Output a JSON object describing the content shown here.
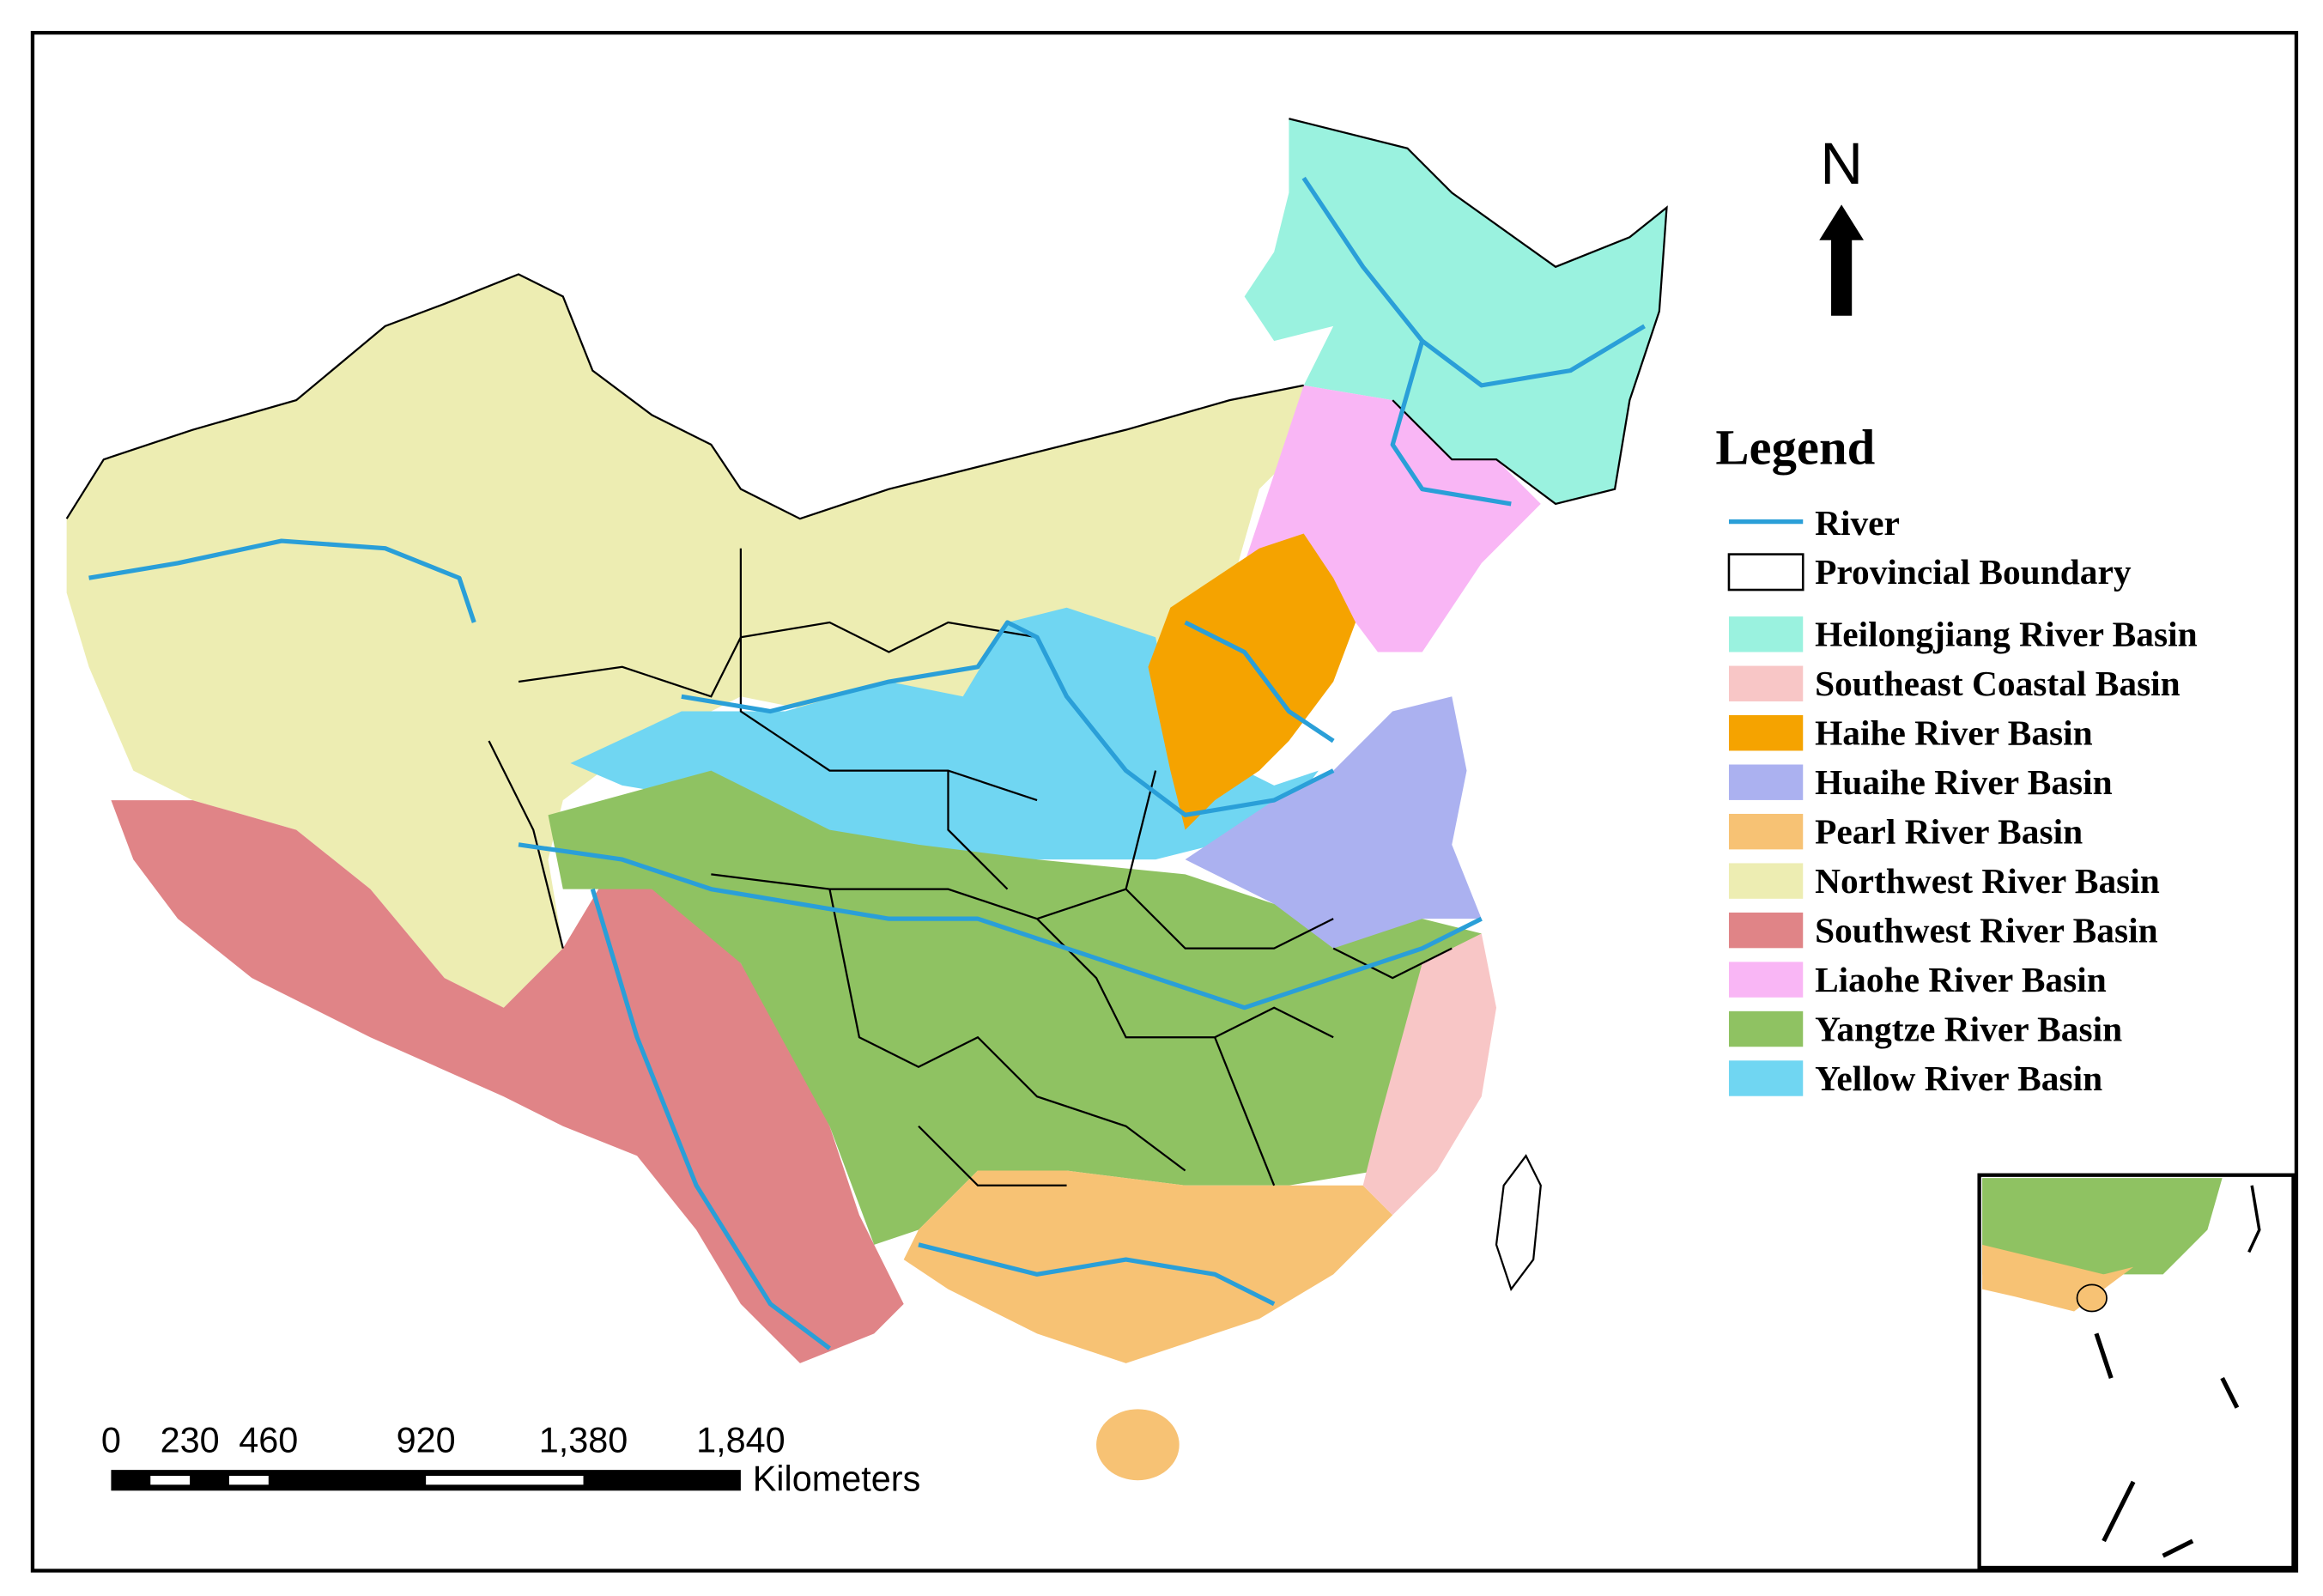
{
  "north_arrow": {
    "label": "N"
  },
  "legend": {
    "title": "Legend",
    "river": {
      "label": "River",
      "color": "#2a9fd8"
    },
    "boundary": {
      "label": "Provincial Boundary"
    },
    "items": [
      {
        "label": "Heilongjiang River Basin",
        "color": "#9af2df"
      },
      {
        "label": "Southeast Coastal Basin",
        "color": "#f8c6c6"
      },
      {
        "label": "Haihe River Basin",
        "color": "#f5a300"
      },
      {
        "label": "Huaihe River Basin",
        "color": "#abb1f0"
      },
      {
        "label": "Pearl River Basin",
        "color": "#f7c274"
      },
      {
        "label": "Northwest River Basin",
        "color": "#ededb2"
      },
      {
        "label": "Southwest River Basin",
        "color": "#e08487"
      },
      {
        "label": "Liaohe River Basin",
        "color": "#f9b6f5"
      },
      {
        "label": "Yangtze River Basin",
        "color": "#8fc262"
      },
      {
        "label": "Yellow River Basin",
        "color": "#70d6f2"
      }
    ]
  },
  "scale_bar": {
    "unit": "Kilometers",
    "ticks": [
      0,
      230,
      460,
      920,
      {
        "value": 1380,
        "label": "1,380"
      },
      {
        "value": 1840,
        "label": "1,840"
      }
    ]
  }
}
